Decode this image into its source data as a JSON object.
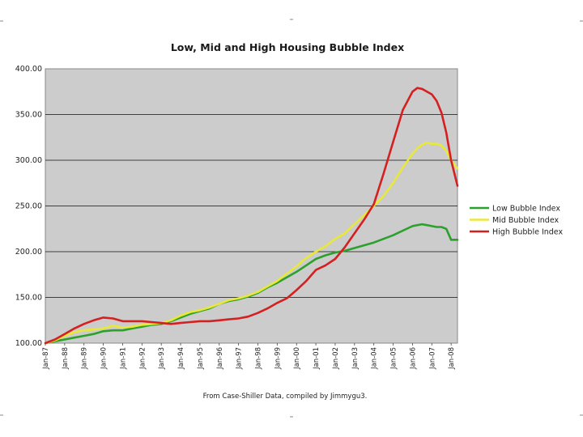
{
  "chart_data": {
    "type": "line",
    "title": "Low, Mid and High Housing Bubble Index",
    "footnote": "From Case-Shiller Data, compiled by Jimmygu3.",
    "ylim": [
      100,
      400
    ],
    "yticks": [
      "100.00",
      "150.00",
      "200.00",
      "250.00",
      "300.00",
      "350.00",
      "400.00"
    ],
    "grid": "horizontal",
    "legend_position": "right",
    "plot_background": "#cccccc",
    "x_range": [
      1987.0,
      2008.33
    ],
    "x_tick_labels": [
      "Jan-87",
      "Jan-88",
      "Jan-89",
      "Jan-90",
      "Jan-91",
      "Jan-92",
      "Jan-93",
      "Jan-94",
      "Jan-95",
      "Jan-96",
      "Jan-97",
      "Jan-98",
      "Jan-99",
      "Jan-00",
      "Jan-01",
      "Jan-02",
      "Jan-03",
      "Jan-04",
      "Jan-05",
      "Jan-06",
      "Jan-07",
      "Jan-08"
    ],
    "x": [
      1987.0,
      1987.5,
      1988.0,
      1988.5,
      1989.0,
      1989.5,
      1990.0,
      1990.5,
      1991.0,
      1991.5,
      1992.0,
      1992.5,
      1993.0,
      1993.5,
      1994.0,
      1994.5,
      1995.0,
      1995.5,
      1996.0,
      1996.5,
      1997.0,
      1997.5,
      1998.0,
      1998.5,
      1999.0,
      1999.5,
      2000.0,
      2000.5,
      2001.0,
      2001.5,
      2002.0,
      2002.5,
      2003.0,
      2003.5,
      2004.0,
      2004.5,
      2005.0,
      2005.5,
      2006.0,
      2006.25,
      2006.5,
      2006.75,
      2007.0,
      2007.25,
      2007.5,
      2007.75,
      2008.0,
      2008.33
    ],
    "series": [
      {
        "name": "Low Bubble Index",
        "color": "#2ca02c",
        "values": [
          100,
          102,
          104,
          106,
          108,
          110,
          113,
          114,
          114,
          116,
          118,
          120,
          121,
          124,
          128,
          132,
          135,
          138,
          143,
          146,
          148,
          151,
          155,
          161,
          166,
          172,
          178,
          185,
          192,
          196,
          199,
          201,
          204,
          207,
          210,
          214,
          218,
          223,
          228,
          229,
          230,
          229,
          228,
          227,
          227,
          225,
          213,
          213
        ]
      },
      {
        "name": "Mid Bubble Index",
        "color": "#e8e83a",
        "values": [
          100,
          103,
          108,
          112,
          114,
          115,
          116,
          119,
          117,
          118,
          120,
          121,
          122,
          125,
          130,
          134,
          136,
          139,
          143,
          147,
          149,
          152,
          156,
          162,
          168,
          176,
          184,
          193,
          200,
          206,
          214,
          220,
          230,
          240,
          250,
          261,
          275,
          292,
          307,
          313,
          317,
          319,
          318,
          318,
          316,
          310,
          300,
          291
        ]
      },
      {
        "name": "High Bubble Index",
        "color": "#d42020",
        "values": [
          100,
          104,
          110,
          116,
          121,
          125,
          128,
          127,
          124,
          124,
          124,
          123,
          122,
          121,
          122,
          123,
          124,
          124,
          125,
          126,
          127,
          129,
          133,
          138,
          144,
          149,
          158,
          168,
          180,
          185,
          192,
          205,
          220,
          235,
          252,
          285,
          320,
          355,
          375,
          379,
          378,
          375,
          372,
          365,
          352,
          330,
          300,
          272
        ]
      }
    ]
  }
}
